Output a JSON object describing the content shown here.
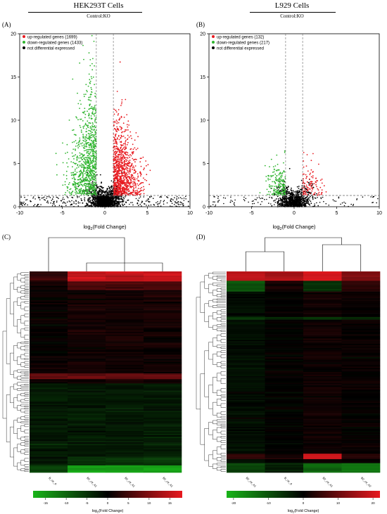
{
  "figure": {
    "panel_a": {
      "label": "(A)",
      "title": "HEK293T Cells",
      "subtitle": "Control:KO",
      "legend": [
        "up-regulated genes (1699)",
        "down-regulated genes (1433)",
        "not differential expressed"
      ],
      "xlabel_main": "log",
      "xlabel_sub": "2",
      "xlabel_rest": "(Fold Change)"
    },
    "panel_b": {
      "label": "(B)",
      "title": "L929 Cells",
      "subtitle": "Control:KO",
      "legend": [
        "up-regulated genes (132)",
        "down-regulated genes (217)",
        "not differential expressed"
      ],
      "xlabel_main": "log",
      "xlabel_sub": "2",
      "xlabel_rest": "(Fold Change)"
    },
    "panel_c": {
      "label": "(C)",
      "columns": [
        "B_ctr_A",
        "B2_ctr_A1",
        "B2_ctr_A1",
        "B2_ctr_A1"
      ],
      "colorbar_label_main": "log",
      "colorbar_label_sub": "2",
      "colorbar_label_rest": "(Fold Change)"
    },
    "panel_d": {
      "label": "(D)",
      "columns": [
        "B2_ctr_A1",
        "B_ctr_A",
        "B2_ctr_A1",
        "B2_ctr_A2"
      ],
      "colorbar_label_main": "log",
      "colorbar_label_sub": "2",
      "colorbar_label_rest": "(Fold Change)"
    },
    "colors": {
      "up": "#e8191f",
      "down": "#2fb52f",
      "ns": "#000000",
      "heat_low": "#19b419",
      "heat_mid": "#000000",
      "heat_high": "#e8191f"
    }
  },
  "chart_data": [
    {
      "type": "scatter",
      "panel": "A",
      "xlim": [
        -10,
        10
      ],
      "ylim": [
        0,
        20
      ],
      "xticks": [
        -10,
        -5,
        0,
        5,
        10
      ],
      "yticks": [
        0,
        5,
        10,
        15,
        20
      ],
      "threshold_y": 1.3,
      "threshold_x": [
        -1,
        1
      ],
      "series": [
        {
          "name": "up-regulated genes (1699)",
          "count": 1699
        },
        {
          "name": "down-regulated genes (1433)",
          "count": 1433
        },
        {
          "name": "not differential expressed"
        }
      ]
    },
    {
      "type": "scatter",
      "panel": "B",
      "xlim": [
        -10,
        10
      ],
      "ylim": [
        0,
        20
      ],
      "xticks": [
        -10,
        -5,
        0,
        5,
        10
      ],
      "yticks": [
        0,
        5,
        10,
        15,
        20
      ],
      "threshold_y": 1.3,
      "threshold_x": [
        -1,
        1
      ],
      "series": [
        {
          "name": "up-regulated genes (132)",
          "count": 132
        },
        {
          "name": "down-regulated genes (217)",
          "count": 217
        },
        {
          "name": "not differential expressed"
        }
      ]
    },
    {
      "type": "heatmap",
      "panel": "C",
      "columns": [
        "B_ctr_A",
        "B2_ctr_A1",
        "B2_ctr_A1",
        "B2_ctr_A1"
      ],
      "colorbar_ticks": [
        -15,
        -10,
        -5,
        0,
        5,
        10,
        15
      ],
      "range": [
        -18,
        18
      ]
    },
    {
      "type": "heatmap",
      "panel": "D",
      "columns": [
        "B2_ctr_A1",
        "B_ctr_A",
        "B2_ctr_A1",
        "B2_ctr_A2"
      ],
      "colorbar_ticks": [
        -20,
        -10,
        0,
        10,
        20
      ],
      "range": [
        -22,
        22
      ]
    }
  ]
}
